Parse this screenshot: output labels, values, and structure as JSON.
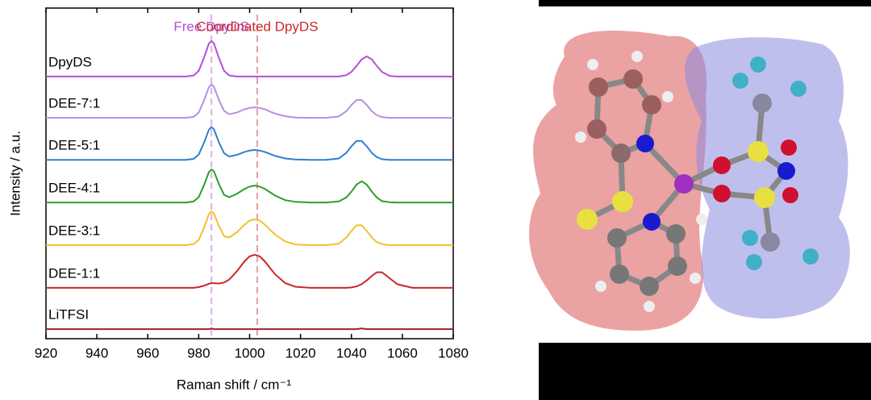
{
  "chart_data": {
    "type": "line",
    "xlabel": "Raman shift / cm⁻¹",
    "ylabel": "Intensity / a.u.",
    "xlim": [
      920,
      1080
    ],
    "xticks": [
      920,
      940,
      960,
      980,
      1000,
      1020,
      1040,
      1060,
      1080
    ],
    "ylim": [
      0,
      100
    ],
    "annotations": [
      {
        "text": "Free DpyDS",
        "x": 985,
        "color": "#b14fd8"
      },
      {
        "text": "Coordinated DpyDS",
        "x": 1003,
        "color": "#c8282a"
      }
    ],
    "x": [
      920,
      930,
      940,
      950,
      960,
      965,
      970,
      975,
      978,
      980,
      982,
      984,
      985,
      986,
      988,
      990,
      992,
      995,
      998,
      1000,
      1002,
      1004,
      1006,
      1008,
      1010,
      1014,
      1018,
      1024,
      1030,
      1035,
      1038,
      1040,
      1042,
      1044,
      1046,
      1048,
      1050,
      1052,
      1055,
      1058,
      1064,
      1070,
      1080
    ],
    "series": [
      {
        "name": "DpyDS",
        "color": "#b14fd8",
        "values": [
          79.3,
          79.3,
          79.3,
          79.3,
          79.3,
          79.3,
          79.3,
          79.3,
          79.6,
          81.0,
          84.8,
          89.3,
          90.0,
          89.3,
          84.8,
          81.0,
          79.6,
          79.3,
          79.3,
          79.3,
          79.3,
          79.3,
          79.3,
          79.3,
          79.3,
          79.3,
          79.3,
          79.3,
          79.3,
          79.3,
          79.7,
          80.7,
          82.5,
          84.5,
          85.4,
          84.5,
          82.5,
          80.7,
          79.5,
          79.3,
          79.3,
          79.3,
          79.3
        ]
      },
      {
        "name": "DEE-7:1",
        "color": "#b98fe0",
        "values": [
          66.8,
          66.8,
          66.8,
          66.8,
          66.8,
          66.8,
          66.8,
          66.8,
          67.1,
          68.4,
          71.9,
          76.1,
          76.9,
          76.2,
          72.1,
          68.9,
          67.9,
          68.4,
          69.4,
          69.8,
          70.0,
          69.8,
          69.4,
          68.7,
          68.1,
          67.3,
          66.9,
          66.8,
          66.8,
          67.2,
          68.8,
          70.7,
          72.2,
          72.2,
          70.7,
          68.8,
          67.6,
          67.0,
          66.8,
          66.8,
          66.8,
          66.8,
          66.8
        ]
      },
      {
        "name": "DEE-5:1",
        "color": "#2f7fd0",
        "values": [
          54.1,
          54.1,
          54.1,
          54.1,
          54.1,
          54.1,
          54.1,
          54.1,
          54.4,
          55.7,
          59.1,
          63.2,
          64.0,
          63.3,
          59.3,
          56.1,
          55.1,
          55.6,
          56.5,
          56.9,
          57.1,
          56.9,
          56.5,
          55.9,
          55.3,
          54.5,
          54.2,
          54.1,
          54.1,
          54.5,
          56.2,
          58.2,
          59.8,
          59.8,
          58.2,
          56.2,
          54.9,
          54.3,
          54.1,
          54.1,
          54.1,
          54.1,
          54.1
        ]
      },
      {
        "name": "DEE-4:1",
        "color": "#2aa02a",
        "values": [
          41.2,
          41.2,
          41.2,
          41.2,
          41.2,
          41.2,
          41.2,
          41.2,
          41.5,
          42.8,
          46.3,
          50.4,
          51.2,
          50.6,
          46.7,
          43.5,
          42.8,
          43.8,
          45.3,
          46.0,
          46.3,
          46.0,
          45.3,
          44.3,
          43.3,
          41.9,
          41.4,
          41.2,
          41.2,
          41.5,
          42.7,
          44.5,
          46.6,
          47.6,
          46.6,
          44.5,
          42.7,
          41.6,
          41.3,
          41.2,
          41.2,
          41.2,
          41.2
        ]
      },
      {
        "name": "DEE-3:1",
        "color": "#f2c12e",
        "values": [
          28.3,
          28.3,
          28.3,
          28.3,
          28.3,
          28.3,
          28.3,
          28.3,
          28.6,
          29.9,
          33.4,
          37.7,
          38.5,
          37.8,
          34.0,
          31.0,
          30.6,
          32.2,
          34.5,
          35.7,
          36.1,
          35.7,
          34.5,
          33.0,
          31.5,
          29.4,
          28.5,
          28.3,
          28.3,
          28.7,
          30.6,
          32.6,
          34.3,
          34.3,
          32.6,
          30.6,
          29.2,
          28.6,
          28.3,
          28.3,
          28.3,
          28.3,
          28.3
        ]
      },
      {
        "name": "DEE-1:1",
        "color": "#c8282a",
        "values": [
          15.4,
          15.4,
          15.4,
          15.4,
          15.4,
          15.4,
          15.4,
          15.4,
          15.4,
          15.6,
          16.0,
          16.6,
          16.8,
          16.8,
          16.7,
          17.0,
          17.9,
          20.4,
          23.4,
          24.9,
          25.4,
          24.9,
          23.4,
          21.4,
          19.5,
          16.8,
          15.7,
          15.4,
          15.4,
          15.4,
          15.4,
          15.5,
          15.8,
          16.5,
          17.6,
          19.0,
          20.1,
          20.1,
          18.3,
          16.5,
          15.4,
          15.4,
          15.4
        ]
      },
      {
        "name": "LiTFSI",
        "color": "#a02030",
        "values": [
          2.9,
          2.9,
          2.9,
          2.9,
          2.9,
          2.9,
          2.9,
          2.9,
          2.9,
          2.9,
          2.9,
          2.9,
          3.1,
          2.9,
          2.9,
          2.9,
          2.9,
          2.9,
          2.9,
          2.9,
          2.9,
          2.9,
          2.9,
          2.9,
          2.9,
          2.9,
          2.9,
          2.9,
          2.9,
          2.9,
          2.9,
          2.9,
          2.9,
          3.1,
          2.9,
          2.9,
          2.9,
          2.9,
          2.9,
          2.9,
          2.9,
          2.9,
          2.9
        ]
      }
    ]
  }
}
